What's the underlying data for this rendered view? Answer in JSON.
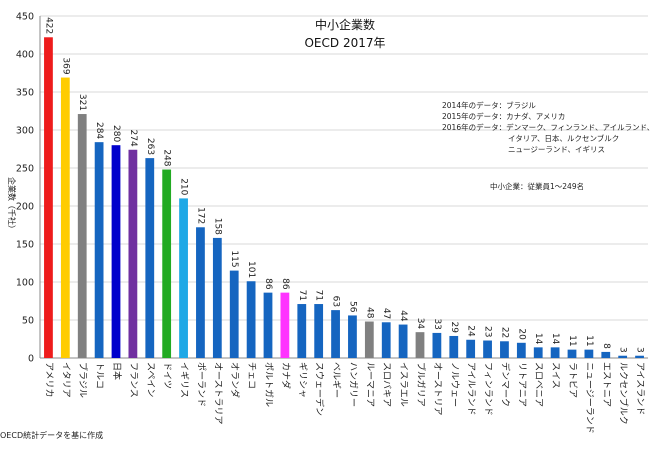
{
  "chart_data": {
    "type": "bar",
    "title": "中小企業数",
    "subtitle": "OECD 2017年",
    "ylabel": "企業数（千社）",
    "ylim": [
      0,
      450
    ],
    "yticks": [
      0,
      50,
      100,
      150,
      200,
      250,
      300,
      350,
      400,
      450
    ],
    "grid": true,
    "legend": "none",
    "notes": [
      "2014年のデータ：ブラジル",
      "2015年のデータ：カナダ、アメリカ",
      "2016年のデータ：デンマーク、フィンランド、アイルランド、",
      "イタリア、日本、ルクセンブルク",
      "ニュージーランド、イギリス"
    ],
    "definition": "中小企業：従業員1〜249名",
    "source": "OECD統計データを基に作成",
    "categories": [
      "アメリカ",
      "イタリア",
      "ブラジル",
      "トルコ",
      "日本",
      "フランス",
      "スペイン",
      "ドイツ",
      "イギリス",
      "ポーランド",
      "オーストラリア",
      "オランダ",
      "チェコ",
      "ポルトガル",
      "カナダ",
      "ギリシャ",
      "スウェーデン",
      "ベルギー",
      "ハンガリー",
      "ルーマニア",
      "スロバキア",
      "イスラエル",
      "ブルガリア",
      "オーストリア",
      "ノルウェー",
      "アイルランド",
      "フィンランド",
      "デンマーク",
      "リトアニア",
      "スロベニア",
      "スイス",
      "ラトビア",
      "ニュージーランド",
      "エストニア",
      "ルクセンブルク",
      "アイスランド"
    ],
    "values": [
      422,
      369,
      321,
      284,
      280,
      274,
      263,
      248,
      210,
      172,
      158,
      115,
      101,
      86,
      86,
      71,
      71,
      63,
      56,
      48,
      47,
      44,
      34,
      33,
      29,
      24,
      23,
      22,
      20,
      14,
      14,
      11,
      11,
      8,
      3,
      3
    ],
    "colors": [
      "#ee1c1c",
      "#ffcc00",
      "#808080",
      "#1565c0",
      "#0000cc",
      "#7030a0",
      "#1565c0",
      "#22aa22",
      "#1ea8e6",
      "#1565c0",
      "#1565c0",
      "#1565c0",
      "#1565c0",
      "#1565c0",
      "#ff33ff",
      "#1565c0",
      "#1565c0",
      "#1565c0",
      "#1565c0",
      "#808080",
      "#1565c0",
      "#1565c0",
      "#808080",
      "#1565c0",
      "#1565c0",
      "#1565c0",
      "#1565c0",
      "#1565c0",
      "#1565c0",
      "#1565c0",
      "#1565c0",
      "#1565c0",
      "#1565c0",
      "#1565c0",
      "#1565c0",
      "#1565c0"
    ]
  }
}
